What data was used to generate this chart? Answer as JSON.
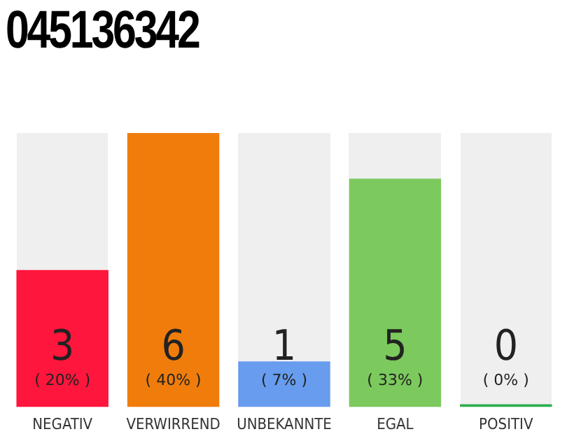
{
  "chart_data": {
    "type": "bar",
    "title": "045136342",
    "categories": [
      "NEGATIV",
      "VERWIRREND",
      "UNBEKANNTE",
      "EGAL",
      "POSITIV"
    ],
    "values": [
      3,
      6,
      1,
      5,
      0
    ],
    "colors": [
      "#ff163c",
      "#f07d0b",
      "#679cee",
      "#7cc95d",
      "#2fae4e"
    ],
    "data_labels": true,
    "annotations": [
      "( 20% )",
      "( 40% )",
      "( 7% )",
      "( 33% )",
      "( 0% )"
    ],
    "tick_labels": "x",
    "grid": false,
    "legend": false
  }
}
